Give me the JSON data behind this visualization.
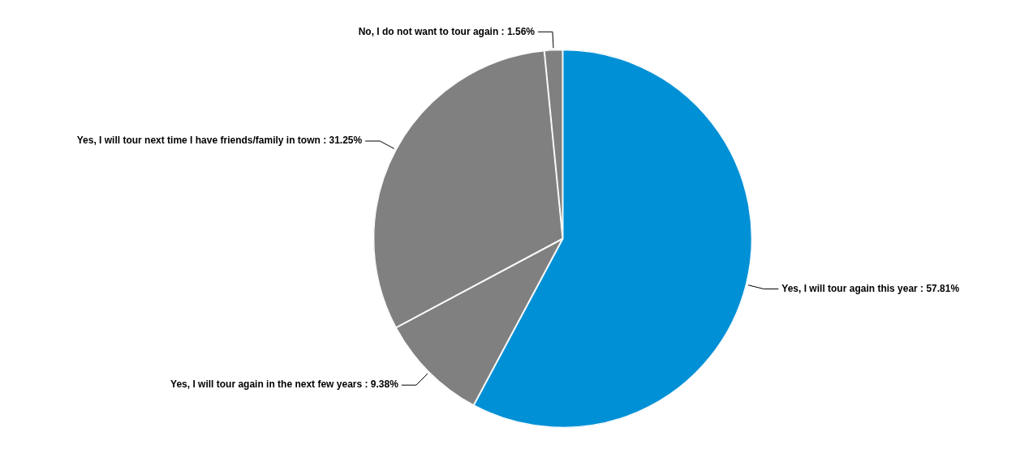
{
  "chart_data": {
    "type": "pie",
    "categories": [
      "Yes, I will tour again this year",
      "Yes, I will tour again in the next few years",
      "Yes, I will tour next time I have friends/family in town",
      "No, I do not want to tour again"
    ],
    "values": [
      57.81,
      9.38,
      31.25,
      1.56
    ],
    "value_labels": [
      "57.81%",
      "9.38%",
      "31.25%",
      "1.56%"
    ],
    "colors": [
      "#0090d6",
      "#808080",
      "#808080",
      "#808080"
    ],
    "legend": false
  }
}
